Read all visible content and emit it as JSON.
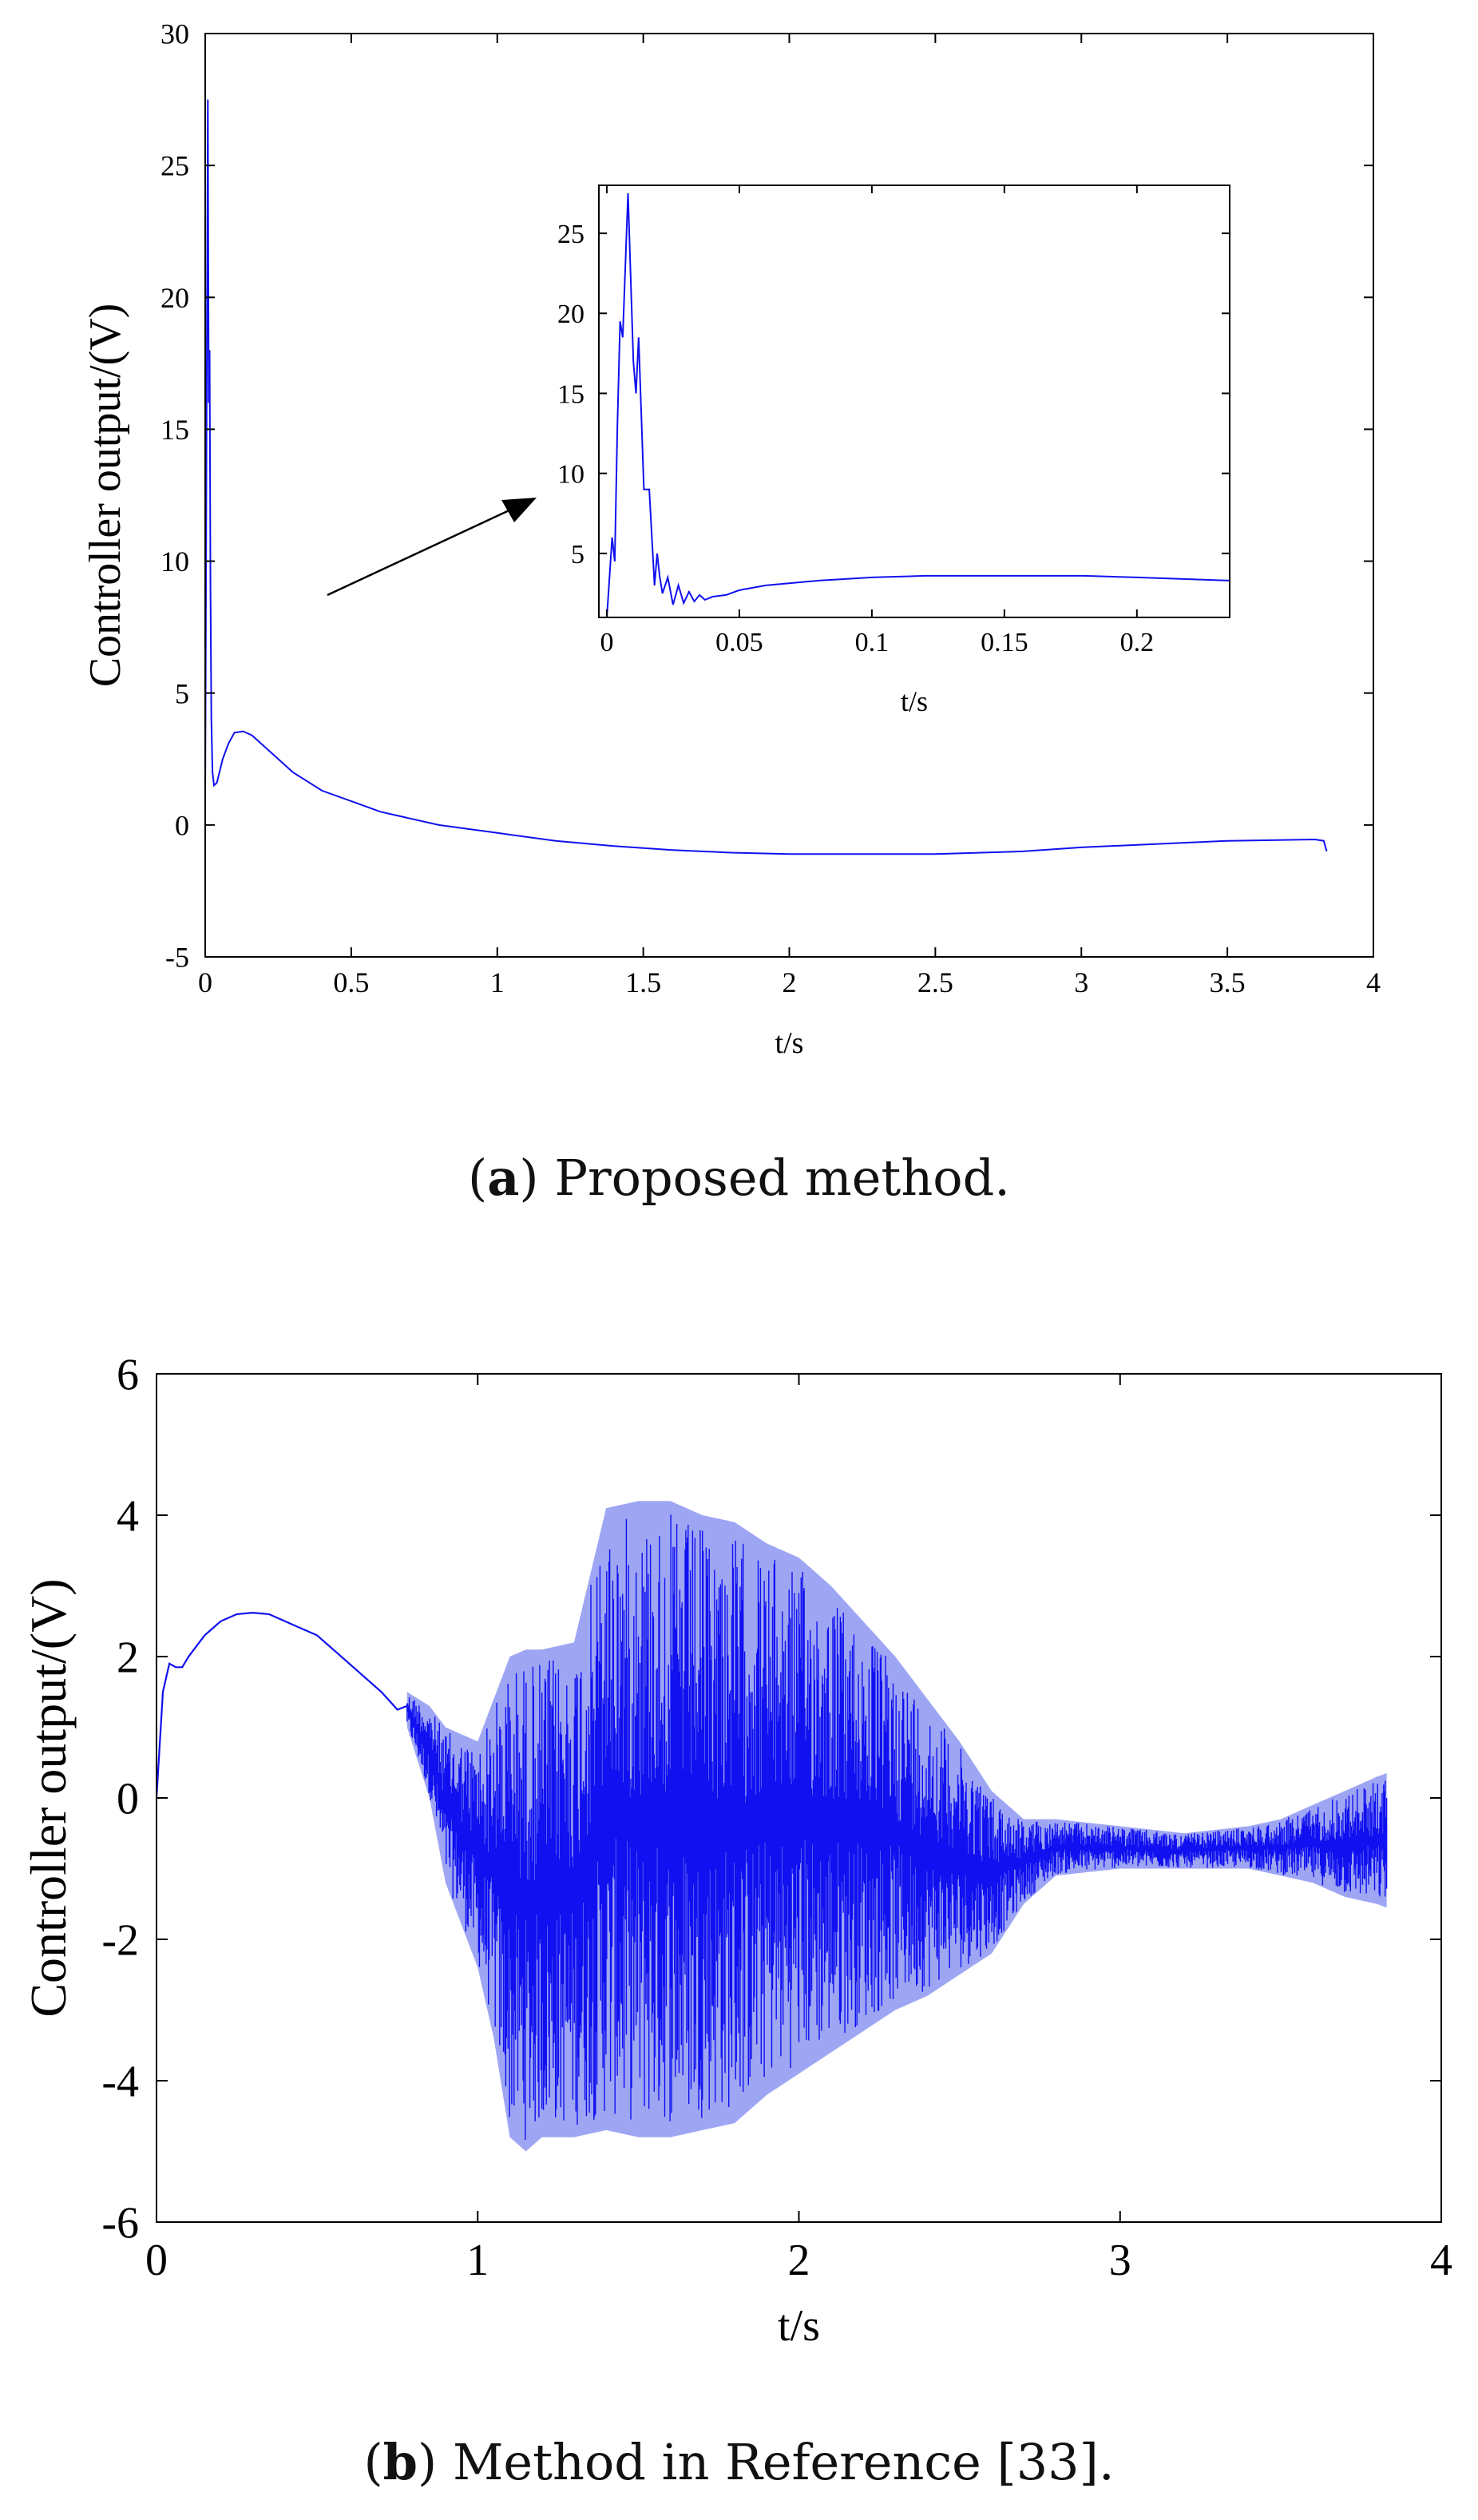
{
  "colors": {
    "line": "#1010f0",
    "band": "#9ea6f4",
    "axis": "#000000",
    "arrow": "#000000"
  },
  "chart_data": [
    {
      "id": "a",
      "type": "line",
      "ylabel": "Controller output/(V)",
      "xlabel": "t/s",
      "xlim": [
        0,
        4
      ],
      "ylim": [
        -5,
        30
      ],
      "xticks": [
        0,
        0.5,
        1,
        1.5,
        2,
        2.5,
        3,
        3.5,
        4
      ],
      "xtick_labels": [
        "0",
        "0.5",
        "1",
        "1.5",
        "2",
        "2.5",
        "3",
        "3.5",
        "4"
      ],
      "yticks": [
        -5,
        0,
        5,
        10,
        15,
        20,
        25,
        30
      ],
      "ytick_labels": [
        "-5",
        "0",
        "5",
        "10",
        "15",
        "20",
        "25",
        "30"
      ],
      "series": [
        {
          "name": "Proposed method",
          "x": [
            0,
            0.003,
            0.006,
            0.009,
            0.012,
            0.015,
            0.018,
            0.021,
            0.025,
            0.03,
            0.04,
            0.06,
            0.08,
            0.1,
            0.13,
            0.16,
            0.2,
            0.25,
            0.3,
            0.4,
            0.5,
            0.6,
            0.8,
            1.0,
            1.2,
            1.4,
            1.6,
            1.8,
            2.0,
            2.2,
            2.5,
            2.8,
            3.0,
            3.2,
            3.5,
            3.8,
            3.83,
            3.84
          ],
          "y": [
            1,
            10,
            19,
            27.5,
            16,
            18,
            9,
            4,
            2,
            1.5,
            1.6,
            2.5,
            3.1,
            3.5,
            3.55,
            3.4,
            3.0,
            2.5,
            2.0,
            1.3,
            0.9,
            0.5,
            0.0,
            -0.3,
            -0.6,
            -0.8,
            -0.95,
            -1.05,
            -1.1,
            -1.1,
            -1.1,
            -1.0,
            -0.85,
            -0.75,
            -0.6,
            -0.55,
            -0.6,
            -1.0
          ]
        }
      ],
      "inset": {
        "xlabel": "t/s",
        "xlim": [
          -0.003,
          0.235
        ],
        "ylim": [
          1,
          28
        ],
        "xticks": [
          0,
          0.05,
          0.1,
          0.15,
          0.2
        ],
        "xtick_labels": [
          "0",
          "0.05",
          "0.1",
          "0.15",
          "0.2"
        ],
        "yticks": [
          5,
          10,
          15,
          20,
          25
        ],
        "ytick_labels": [
          "5",
          "10",
          "15",
          "20",
          "25"
        ],
        "x": [
          0,
          0.002,
          0.003,
          0.004,
          0.005,
          0.006,
          0.008,
          0.01,
          0.011,
          0.012,
          0.014,
          0.016,
          0.018,
          0.019,
          0.02,
          0.021,
          0.023,
          0.025,
          0.027,
          0.029,
          0.031,
          0.033,
          0.035,
          0.037,
          0.04,
          0.045,
          0.05,
          0.06,
          0.08,
          0.1,
          0.12,
          0.15,
          0.18,
          0.2,
          0.235
        ],
        "y": [
          1,
          6,
          4.5,
          13,
          19.5,
          18.5,
          27.5,
          17,
          15,
          18.5,
          9,
          9,
          3,
          5,
          3.5,
          2.5,
          3.5,
          1.8,
          3,
          1.9,
          2.6,
          2.0,
          2.4,
          2.1,
          2.3,
          2.4,
          2.7,
          3.0,
          3.3,
          3.5,
          3.6,
          3.6,
          3.6,
          3.5,
          3.3
        ]
      }
    },
    {
      "id": "b",
      "type": "line",
      "ylabel": "Controller output/(V)",
      "xlabel": "t/s",
      "xlim": [
        0,
        4
      ],
      "ylim": [
        -6,
        6
      ],
      "xticks": [
        0,
        1,
        2,
        3,
        4
      ],
      "xtick_labels": [
        "0",
        "1",
        "2",
        "3",
        "4"
      ],
      "yticks": [
        -6,
        -4,
        -2,
        0,
        2,
        4,
        6
      ],
      "ytick_labels": [
        "-6",
        "-4",
        "-2",
        "0",
        "2",
        "4",
        "6"
      ],
      "series": [
        {
          "name": "Method in Reference [33]",
          "smooth_x": [
            0,
            0.02,
            0.04,
            0.06,
            0.08,
            0.1,
            0.15,
            0.2,
            0.25,
            0.3,
            0.35,
            0.4,
            0.5,
            0.6,
            0.7,
            0.75,
            0.78
          ],
          "smooth_y": [
            0,
            1.5,
            1.9,
            1.85,
            1.85,
            2.0,
            2.3,
            2.5,
            2.6,
            2.62,
            2.6,
            2.5,
            2.3,
            1.9,
            1.5,
            1.25,
            1.3
          ],
          "envelope_x": [
            0.78,
            0.85,
            0.9,
            1.0,
            1.05,
            1.1,
            1.15,
            1.2,
            1.3,
            1.4,
            1.5,
            1.6,
            1.7,
            1.8,
            1.9,
            2.0,
            2.1,
            2.2,
            2.3,
            2.4,
            2.5,
            2.6,
            2.7,
            2.8,
            2.9,
            3.0,
            3.1,
            3.2,
            3.3,
            3.4,
            3.5,
            3.6,
            3.7,
            3.8,
            3.83
          ],
          "envelope_upper": [
            1.5,
            1.3,
            1.0,
            0.8,
            1.4,
            2.0,
            2.1,
            2.1,
            2.2,
            4.1,
            4.2,
            4.2,
            4.0,
            3.9,
            3.6,
            3.4,
            3.0,
            2.5,
            2.0,
            1.4,
            0.8,
            0.1,
            -0.3,
            -0.3,
            -0.35,
            -0.4,
            -0.45,
            -0.5,
            -0.45,
            -0.4,
            -0.3,
            -0.1,
            0.1,
            0.3,
            0.35
          ],
          "envelope_lower": [
            1.0,
            0.0,
            -1.2,
            -2.4,
            -3.4,
            -4.8,
            -5.0,
            -4.8,
            -4.8,
            -4.7,
            -4.8,
            -4.8,
            -4.7,
            -4.6,
            -4.2,
            -3.9,
            -3.6,
            -3.3,
            -3.0,
            -2.8,
            -2.5,
            -2.2,
            -1.5,
            -1.1,
            -1.05,
            -1.0,
            -1.0,
            -1.0,
            -1.0,
            -1.0,
            -1.1,
            -1.2,
            -1.4,
            -1.5,
            -1.55
          ]
        }
      ]
    }
  ],
  "captions": {
    "a_label": "a",
    "a_text": "Proposed method.",
    "b_label": "b",
    "b_text": "Method in Reference [33]."
  }
}
